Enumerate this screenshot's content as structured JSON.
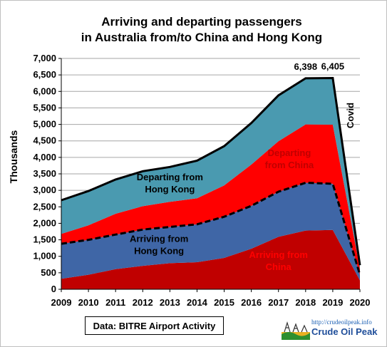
{
  "chart_data": {
    "type": "area",
    "title_lines": [
      "Arriving and departing passengers",
      "in Australia from/to China and Hong Kong"
    ],
    "ylabel": "Thousands",
    "xlabel": "",
    "x": [
      "2009",
      "2010",
      "2011",
      "2012",
      "2013",
      "2014",
      "2015",
      "2016",
      "2017",
      "2018",
      "2019",
      "2020"
    ],
    "ylim": [
      0,
      7000
    ],
    "yticks": [
      "0",
      "500",
      "1,000",
      "1,500",
      "2,000",
      "2,500",
      "3,000",
      "3,500",
      "4,000",
      "4,500",
      "5,000",
      "5,500",
      "6,000",
      "6,500",
      "7,000"
    ],
    "ytick_values": [
      0,
      500,
      1000,
      1500,
      2000,
      2500,
      3000,
      3500,
      4000,
      4500,
      5000,
      5500,
      6000,
      6500,
      7000
    ],
    "grid": true,
    "stacked": true,
    "series": [
      {
        "name": "Arriving from China",
        "color": "#c00000",
        "values": [
          320,
          440,
          610,
          710,
          790,
          820,
          950,
          1230,
          1590,
          1780,
          1800,
          270
        ]
      },
      {
        "name": "Arriving from Hong Kong",
        "color": "#3f66a6",
        "values": [
          1060,
          1060,
          1050,
          1100,
          1100,
          1150,
          1250,
          1300,
          1370,
          1450,
          1400,
          170
        ]
      },
      {
        "name": "Departing from China",
        "color": "#ff0000",
        "values": [
          300,
          440,
          630,
          710,
          760,
          790,
          950,
          1250,
          1530,
          1770,
          1790,
          190
        ]
      },
      {
        "name": "Departing from Hong Kong",
        "color": "#4a9ab0",
        "values": [
          1020,
          1040,
          1040,
          1060,
          1060,
          1140,
          1190,
          1260,
          1390,
          1398,
          1415,
          100
        ]
      }
    ],
    "line_annotations": {
      "total_line": {
        "style": "solid",
        "color": "#000000"
      },
      "arrivals_line": {
        "style": "dashed",
        "color": "#000000"
      }
    },
    "series_labels": [
      {
        "series": "Departing from Hong Kong",
        "lines": [
          "Departing from",
          "Hong Kong"
        ],
        "color": "#000000"
      },
      {
        "series": "Departing from China",
        "lines": [
          "Departing",
          "from China"
        ],
        "color": "#c00000"
      },
      {
        "series": "Arriving from Hong Kong",
        "lines": [
          "Arriving from",
          "Hong Kong"
        ],
        "color": "#000000"
      },
      {
        "series": "Arriving from China",
        "lines": [
          "Arriving from",
          "China"
        ],
        "color": "#ff0000"
      }
    ],
    "value_labels": [
      {
        "x": "2018",
        "text": "6,398"
      },
      {
        "x": "2019",
        "text": "6,405"
      }
    ],
    "side_annotation": "Covid"
  },
  "source_text": "Data: BITRE Airport Activity",
  "logo": {
    "url_text": "http://crudeoilpeak.info",
    "name": "Crude Oil Peak"
  }
}
